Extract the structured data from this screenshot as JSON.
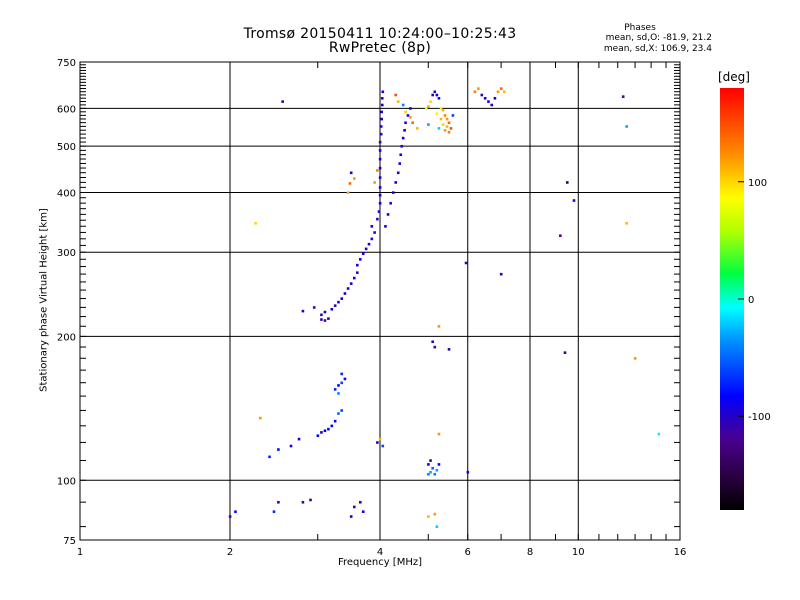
{
  "header": {
    "title_line1": "Tromsø 20150411 10:24:00–10:25:43",
    "title_line2": "RwPretec (8p)",
    "phase_title": "Phases",
    "phase_o": "mean, sd,O: -81.9, 21.2",
    "phase_x": "mean, sd,X: 106.9, 23.4"
  },
  "colorbar": {
    "unit": "[deg]",
    "ticks": [
      "100",
      "0",
      "-100"
    ],
    "tick_values": [
      100,
      0,
      -100
    ],
    "range": [
      -180,
      180
    ]
  },
  "chart_data": {
    "type": "scatter",
    "title": "Tromsø 20150411 10:24:00–10:25:43",
    "subtitle": "RwPretec (8p)",
    "xlabel": "Frequency [MHz]",
    "ylabel": "Stationary phase Virtual Height [km]",
    "x_scale": "log",
    "y_scale": "log",
    "xlim": [
      1,
      16
    ],
    "ylim": [
      75,
      750
    ],
    "x_ticks": [
      1,
      2,
      4,
      6,
      8,
      10,
      16
    ],
    "x_tick_labels": [
      "1",
      "2",
      "4",
      "6",
      "8",
      "10",
      "16"
    ],
    "y_ticks": [
      75,
      100,
      200,
      300,
      400,
      500,
      600,
      750
    ],
    "y_tick_labels": [
      "75",
      "100",
      "200",
      "300",
      "400",
      "500",
      "600",
      "750"
    ],
    "grid": true,
    "color_by": "phase [deg]",
    "points": [
      [
        2.0,
        84,
        -110
      ],
      [
        2.05,
        86,
        -80
      ],
      [
        2.3,
        135,
        120
      ],
      [
        2.25,
        345,
        100
      ],
      [
        2.45,
        86,
        -70
      ],
      [
        2.5,
        90,
        -100
      ],
      [
        2.4,
        112,
        -70
      ],
      [
        2.5,
        116,
        -80
      ],
      [
        2.65,
        118,
        -90
      ],
      [
        2.75,
        122,
        -95
      ],
      [
        2.8,
        90,
        -110
      ],
      [
        2.9,
        91,
        -100
      ],
      [
        2.55,
        620,
        -110
      ],
      [
        2.8,
        226,
        -100
      ],
      [
        2.95,
        230,
        -110
      ],
      [
        3.0,
        124,
        -80
      ],
      [
        3.05,
        126,
        -90
      ],
      [
        3.1,
        127,
        -85
      ],
      [
        3.15,
        128,
        -90
      ],
      [
        3.2,
        130,
        -85
      ],
      [
        3.25,
        133,
        -80
      ],
      [
        3.3,
        138,
        -50
      ],
      [
        3.35,
        140,
        -60
      ],
      [
        3.25,
        155,
        -70
      ],
      [
        3.3,
        158,
        -80
      ],
      [
        3.35,
        160,
        -60
      ],
      [
        3.4,
        163,
        -90
      ],
      [
        3.35,
        167,
        -70
      ],
      [
        3.3,
        152,
        -40
      ],
      [
        3.05,
        217,
        -110
      ],
      [
        3.1,
        216,
        -110
      ],
      [
        3.15,
        218,
        -105
      ],
      [
        3.05,
        222,
        -100
      ],
      [
        3.1,
        225,
        -100
      ],
      [
        3.2,
        228,
        -95
      ],
      [
        3.25,
        232,
        -105
      ],
      [
        3.3,
        236,
        -100
      ],
      [
        3.35,
        240,
        -95
      ],
      [
        3.4,
        246,
        -90
      ],
      [
        3.45,
        252,
        -100
      ],
      [
        3.5,
        258,
        -95
      ],
      [
        3.55,
        265,
        -90
      ],
      [
        3.6,
        272,
        -100
      ],
      [
        3.6,
        282,
        -95
      ],
      [
        3.65,
        290,
        -90
      ],
      [
        3.7,
        298,
        -100
      ],
      [
        3.75,
        305,
        -95
      ],
      [
        3.8,
        312,
        -90
      ],
      [
        3.85,
        320,
        -100
      ],
      [
        3.9,
        330,
        -95
      ],
      [
        3.85,
        340,
        -90
      ],
      [
        3.95,
        352,
        -100
      ],
      [
        3.98,
        365,
        -95
      ],
      [
        4.0,
        380,
        -90
      ],
      [
        4.0,
        395,
        -100
      ],
      [
        4.0,
        410,
        -95
      ],
      [
        4.0,
        430,
        -90
      ],
      [
        4.0,
        450,
        -100
      ],
      [
        4.0,
        470,
        -95
      ],
      [
        4.0,
        490,
        -90
      ],
      [
        4.0,
        510,
        -100
      ],
      [
        4.02,
        530,
        -95
      ],
      [
        4.02,
        550,
        -90
      ],
      [
        4.03,
        570,
        -100
      ],
      [
        4.03,
        590,
        -95
      ],
      [
        4.04,
        610,
        -90
      ],
      [
        4.04,
        630,
        -100
      ],
      [
        4.05,
        650,
        -95
      ],
      [
        3.9,
        420,
        120
      ],
      [
        3.95,
        445,
        130
      ],
      [
        3.5,
        440,
        -90
      ],
      [
        3.45,
        400,
        110
      ],
      [
        3.48,
        418,
        140
      ],
      [
        3.55,
        428,
        120
      ],
      [
        4.1,
        340,
        -95
      ],
      [
        4.15,
        360,
        -90
      ],
      [
        4.2,
        380,
        -100
      ],
      [
        4.25,
        400,
        -95
      ],
      [
        4.3,
        420,
        -90
      ],
      [
        4.35,
        440,
        -100
      ],
      [
        4.38,
        460,
        -95
      ],
      [
        4.4,
        480,
        -90
      ],
      [
        4.42,
        500,
        -100
      ],
      [
        4.45,
        520,
        -95
      ],
      [
        4.48,
        540,
        -90
      ],
      [
        4.5,
        560,
        -100
      ],
      [
        4.55,
        580,
        -95
      ],
      [
        4.6,
        600,
        -90
      ],
      [
        4.3,
        640,
        150
      ],
      [
        4.35,
        620,
        110
      ],
      [
        4.45,
        610,
        -40
      ],
      [
        4.5,
        590,
        100
      ],
      [
        4.6,
        575,
        120
      ],
      [
        4.65,
        560,
        140
      ],
      [
        4.75,
        545,
        110
      ],
      [
        4.95,
        600,
        80
      ],
      [
        5.0,
        605,
        120
      ],
      [
        5.05,
        620,
        100
      ],
      [
        5.1,
        640,
        -100
      ],
      [
        5.15,
        650,
        -110
      ],
      [
        5.2,
        640,
        -90
      ],
      [
        5.25,
        630,
        -95
      ],
      [
        5.3,
        600,
        90
      ],
      [
        5.35,
        595,
        110
      ],
      [
        5.4,
        580,
        130
      ],
      [
        5.45,
        570,
        120
      ],
      [
        5.5,
        560,
        140
      ],
      [
        5.55,
        545,
        150
      ],
      [
        5.5,
        535,
        130
      ],
      [
        5.45,
        550,
        110
      ],
      [
        5.4,
        540,
        120
      ],
      [
        5.35,
        555,
        100
      ],
      [
        5.6,
        580,
        -60
      ],
      [
        5.0,
        555,
        -30
      ],
      [
        5.25,
        545,
        -20
      ],
      [
        5.3,
        570,
        110
      ],
      [
        5.2,
        585,
        90
      ],
      [
        6.2,
        650,
        130
      ],
      [
        6.3,
        660,
        120
      ],
      [
        6.4,
        640,
        -110
      ],
      [
        6.5,
        630,
        -100
      ],
      [
        6.6,
        620,
        -90
      ],
      [
        6.7,
        610,
        -95
      ],
      [
        6.8,
        630,
        -100
      ],
      [
        6.9,
        650,
        120
      ],
      [
        7.0,
        660,
        140
      ],
      [
        7.1,
        650,
        110
      ],
      [
        5.1,
        195,
        -100
      ],
      [
        5.15,
        190,
        -110
      ],
      [
        5.25,
        210,
        120
      ],
      [
        5.5,
        188,
        -105
      ],
      [
        5.0,
        103,
        -40
      ],
      [
        5.05,
        104,
        -30
      ],
      [
        5.1,
        106,
        -50
      ],
      [
        5.0,
        108,
        -90
      ],
      [
        5.05,
        110,
        -100
      ],
      [
        5.15,
        103,
        -40
      ],
      [
        5.2,
        105,
        -30
      ],
      [
        5.25,
        108,
        -90
      ],
      [
        5.0,
        84,
        110
      ],
      [
        5.15,
        85,
        120
      ],
      [
        5.2,
        80,
        -20
      ],
      [
        5.25,
        125,
        120
      ],
      [
        6.0,
        104,
        -90
      ],
      [
        5.95,
        285,
        -110
      ],
      [
        7.0,
        270,
        -100
      ],
      [
        9.2,
        325,
        -120
      ],
      [
        9.5,
        420,
        -140
      ],
      [
        9.8,
        385,
        -95
      ],
      [
        9.4,
        185,
        -130
      ],
      [
        12.3,
        635,
        -120
      ],
      [
        12.5,
        550,
        -30
      ],
      [
        12.5,
        345,
        110
      ],
      [
        13.0,
        180,
        120
      ],
      [
        14.5,
        125,
        -10
      ],
      [
        3.5,
        84,
        -100
      ],
      [
        3.55,
        88,
        -110
      ],
      [
        3.65,
        90,
        -100
      ],
      [
        3.7,
        86,
        -90
      ],
      [
        4.0,
        122,
        110
      ],
      [
        3.95,
        120,
        -100
      ],
      [
        4.05,
        118,
        -60
      ]
    ]
  }
}
